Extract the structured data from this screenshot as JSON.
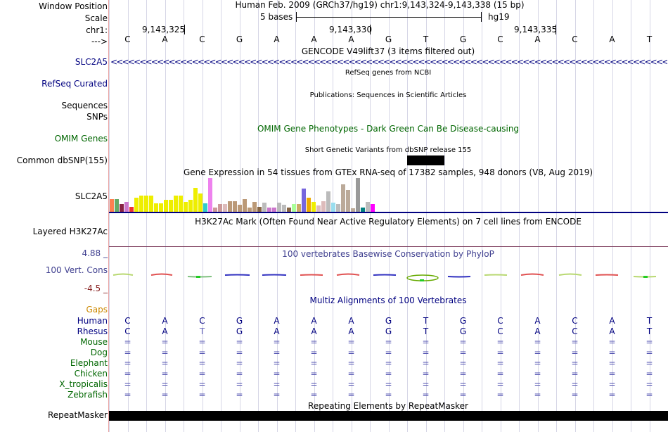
{
  "header": {
    "window_position_label": "Window Position",
    "assembly_range": "Human Feb. 2009 (GRCh37/hg19)   chr1:9,143,324-9,143,338 (15 bp)",
    "scale_label": "Scale",
    "scale_value": "5 bases",
    "scale_assembly": "hg19",
    "chrom_label": "chr1:",
    "coord_1": "9,143,325",
    "coord_2": "9,143,330",
    "coord_3": "9,143,335",
    "strand_label": "--->"
  },
  "bases": [
    "C",
    "A",
    "C",
    "G",
    "A",
    "A",
    "A",
    "G",
    "T",
    "G",
    "C",
    "A",
    "C",
    "A",
    "T"
  ],
  "tracks": {
    "gencode": {
      "title": "GENCODE V49lift37 (3 items filtered out)",
      "label": "SLC2A5",
      "arrows": "<<<<<<<<<<<<<<<<<<<<<<<<<<<<<<<<<<<<<<<<<<<<<<<<<<<<<<<<<<<<<<<<<<<<<<<<<<<<<<<<<<<<<<<<<<<<<<<<<<<<<<<<<<<<<<<<<<<<<<<<<<<<<<<<<"
    },
    "refseq": {
      "title": "RefSeq genes from NCBI",
      "label": "RefSeq Curated"
    },
    "pubs": {
      "title": "Publications: Sequences in Scientific Articles",
      "label": "Sequences"
    },
    "snps_label": "SNPs",
    "omim": {
      "title": "OMIM Gene Phenotypes - Dark Green Can Be Disease-causing",
      "label": "OMIM Genes"
    },
    "dbsnp": {
      "title": "Short Genetic Variants from dbSNP release 155",
      "label": "Common dbSNP(155)"
    },
    "gtex": {
      "title": "Gene Expression in 54 tissues from GTEx RNA-seq of 17382 samples, 948 donors (V8, Aug 2019)",
      "label": "SLC2A5",
      "bars": [
        {
          "v": 0.38,
          "c": "#ff7f50"
        },
        {
          "v": 0.38,
          "c": "#66aa66"
        },
        {
          "v": 0.22,
          "c": "#882244"
        },
        {
          "v": 0.3,
          "c": "#cc77cc"
        },
        {
          "v": 0.15,
          "c": "#ee3333"
        },
        {
          "v": 0.42,
          "c": "#eeee00"
        },
        {
          "v": 0.48,
          "c": "#eeee00"
        },
        {
          "v": 0.48,
          "c": "#eeee00"
        },
        {
          "v": 0.48,
          "c": "#eeee00"
        },
        {
          "v": 0.25,
          "c": "#eeee00"
        },
        {
          "v": 0.25,
          "c": "#eeee00"
        },
        {
          "v": 0.35,
          "c": "#eeee00"
        },
        {
          "v": 0.35,
          "c": "#eeee00"
        },
        {
          "v": 0.48,
          "c": "#eeee00"
        },
        {
          "v": 0.48,
          "c": "#eeee00"
        },
        {
          "v": 0.3,
          "c": "#eeee00"
        },
        {
          "v": 0.35,
          "c": "#eeee00"
        },
        {
          "v": 0.7,
          "c": "#eeee00"
        },
        {
          "v": 0.55,
          "c": "#eeee00"
        },
        {
          "v": 0.25,
          "c": "#33cccc"
        },
        {
          "v": 1.0,
          "c": "#ee82ee"
        },
        {
          "v": 0.12,
          "c": "#cc9999"
        },
        {
          "v": 0.22,
          "c": "#cc9999"
        },
        {
          "v": 0.22,
          "c": "#ddbbbb"
        },
        {
          "v": 0.32,
          "c": "#bb9977"
        },
        {
          "v": 0.32,
          "c": "#bb9977"
        },
        {
          "v": 0.2,
          "c": "#bb9977"
        },
        {
          "v": 0.38,
          "c": "#bb9977"
        },
        {
          "v": 0.12,
          "c": "#bb9977"
        },
        {
          "v": 0.3,
          "c": "#bb9977"
        },
        {
          "v": 0.15,
          "c": "#886644"
        },
        {
          "v": 0.28,
          "c": "#bbbbbb"
        },
        {
          "v": 0.12,
          "c": "#cc77cc"
        },
        {
          "v": 0.12,
          "c": "#cc77cc"
        },
        {
          "v": 0.28,
          "c": "#bbbbbb"
        },
        {
          "v": 0.2,
          "c": "#bbbbbb"
        },
        {
          "v": 0.12,
          "c": "#886644"
        },
        {
          "v": 0.22,
          "c": "#aaff99"
        },
        {
          "v": 0.22,
          "c": "#ccaa66"
        },
        {
          "v": 0.68,
          "c": "#7766dd"
        },
        {
          "v": 0.42,
          "c": "#eeaa00"
        },
        {
          "v": 0.3,
          "c": "#eeee00"
        },
        {
          "v": 0.18,
          "c": "#ddbbbb"
        },
        {
          "v": 0.32,
          "c": "#ddbbbb"
        },
        {
          "v": 0.6,
          "c": "#bbbbbb"
        },
        {
          "v": 0.28,
          "c": "#99ddee"
        },
        {
          "v": 0.22,
          "c": "#bbbbbb"
        },
        {
          "v": 0.82,
          "c": "#bbaa99"
        },
        {
          "v": 0.65,
          "c": "#bbaa99"
        },
        {
          "v": 0.1,
          "c": "#bbaa99"
        },
        {
          "v": 1.0,
          "c": "#999999"
        },
        {
          "v": 0.12,
          "c": "#008080"
        },
        {
          "v": 0.3,
          "c": "#bbbbbb"
        },
        {
          "v": 0.22,
          "c": "#ff00ff"
        }
      ]
    },
    "h3k27ac": {
      "title": "H3K27Ac Mark (Often Found Near Active Regulatory Elements) on 7 cell lines from ENCODE",
      "label": "Layered H3K27Ac"
    },
    "phylop": {
      "title": "100 vertebrates Basewise Conservation by PhyloP",
      "label": "100 Vert. Cons",
      "max_label": "4.88 _",
      "min_label": "-4.5 _"
    },
    "multiz": {
      "title": "Multiz Alignments of 100 Vertebrates",
      "gaps_label": "Gaps",
      "species": [
        {
          "name": "Human",
          "row": "CACGAAAGTGCACAT"
        },
        {
          "name": "Rhesus",
          "row": "CATGAAAGTGCACAT"
        },
        {
          "name": "Mouse",
          "row": "==============="
        },
        {
          "name": "Dog",
          "row": "==============="
        },
        {
          "name": "Elephant",
          "row": "==============="
        },
        {
          "name": "Chicken",
          "row": "==============="
        },
        {
          "name": "X_tropicalis",
          "row": "==============="
        },
        {
          "name": "Zebrafish",
          "row": "==============="
        }
      ]
    },
    "repeatmasker": {
      "title": "Repeating Elements by RepeatMasker",
      "label": "RepeatMasker"
    }
  },
  "colors": {
    "gene_blue": "#000080",
    "omim_green": "#006600",
    "phylop_blue": "#404090",
    "gaps_orange": "#cc8800",
    "species_green": "#006600"
  }
}
